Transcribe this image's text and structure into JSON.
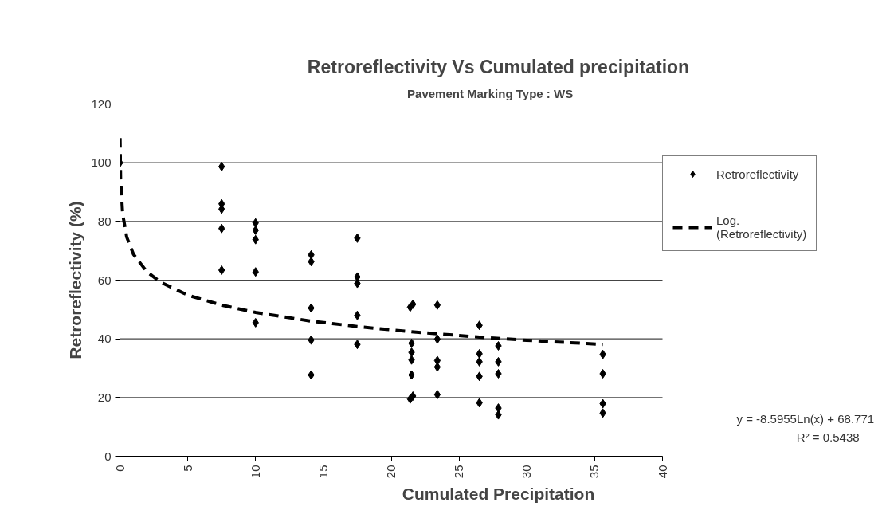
{
  "chart_data": {
    "type": "scatter",
    "title": "Retroreflectivity Vs Cumulated precipitation",
    "subtitle": "Pavement Marking Type :      WS",
    "xlabel": "Cumulated Precipitation",
    "ylabel": "Retroreflectivity (%)",
    "xlim": [
      0,
      40
    ],
    "xticks": [
      0,
      5,
      10,
      15,
      20,
      25,
      30,
      35,
      40
    ],
    "ylim": [
      0,
      120
    ],
    "yticks": [
      0,
      20,
      40,
      60,
      80,
      100,
      120
    ],
    "grid": "y",
    "legend": "right",
    "annotations": [
      "y = -8.5955Ln(x) + 68.771",
      "R² = 0.5438"
    ],
    "series": [
      {
        "name": "Retroreflectivity",
        "marker": "diamond",
        "color": "#000000",
        "x": [
          0,
          7.5,
          7.5,
          7.5,
          7.5,
          7.5,
          10,
          10,
          10,
          10,
          10,
          14.1,
          14.1,
          14.1,
          14.1,
          14.1,
          17.5,
          17.5,
          17.5,
          17.5,
          17.5,
          21.4,
          21.6,
          21.5,
          21.5,
          21.5,
          21.5,
          21.4,
          21.6,
          23.4,
          23.4,
          23.4,
          23.4,
          23.4,
          26.5,
          26.5,
          26.5,
          26.5,
          26.5,
          27.9,
          27.9,
          27.9,
          27.9,
          27.9,
          35.6,
          35.6,
          35.6,
          35.6
        ],
        "values": [
          100,
          98.7,
          86,
          84.2,
          77.6,
          63.4,
          79.5,
          77,
          73.8,
          62.8,
          45.5,
          68.6,
          66.3,
          50.5,
          39.6,
          27.7,
          74.3,
          61.1,
          58.9,
          48,
          38.1,
          50.8,
          51.8,
          38.5,
          35.4,
          32.8,
          27.7,
          19.5,
          20.5,
          51.5,
          39.9,
          32.6,
          30.4,
          21,
          44.6,
          34.9,
          32.2,
          27.2,
          18.2,
          37.6,
          32.2,
          28.1,
          16.4,
          14.1,
          34.7,
          28.1,
          17.9,
          14.7
        ]
      },
      {
        "name": "Log. (Retroreflectivity)",
        "type": "line",
        "line_style": "dashed",
        "color": "#000000",
        "x": [
          0.01,
          0.05,
          0.2,
          0.5,
          1,
          2,
          3,
          5,
          7.5,
          10,
          14,
          17.5,
          21.5,
          26.5,
          30,
          35.6
        ],
        "values": [
          108.4,
          94.5,
          82.6,
          74.7,
          68.8,
          62.8,
          59.3,
          54.9,
          51.5,
          49,
          46.1,
          44.2,
          42.4,
          40.6,
          39.5,
          38.1
        ]
      }
    ]
  }
}
